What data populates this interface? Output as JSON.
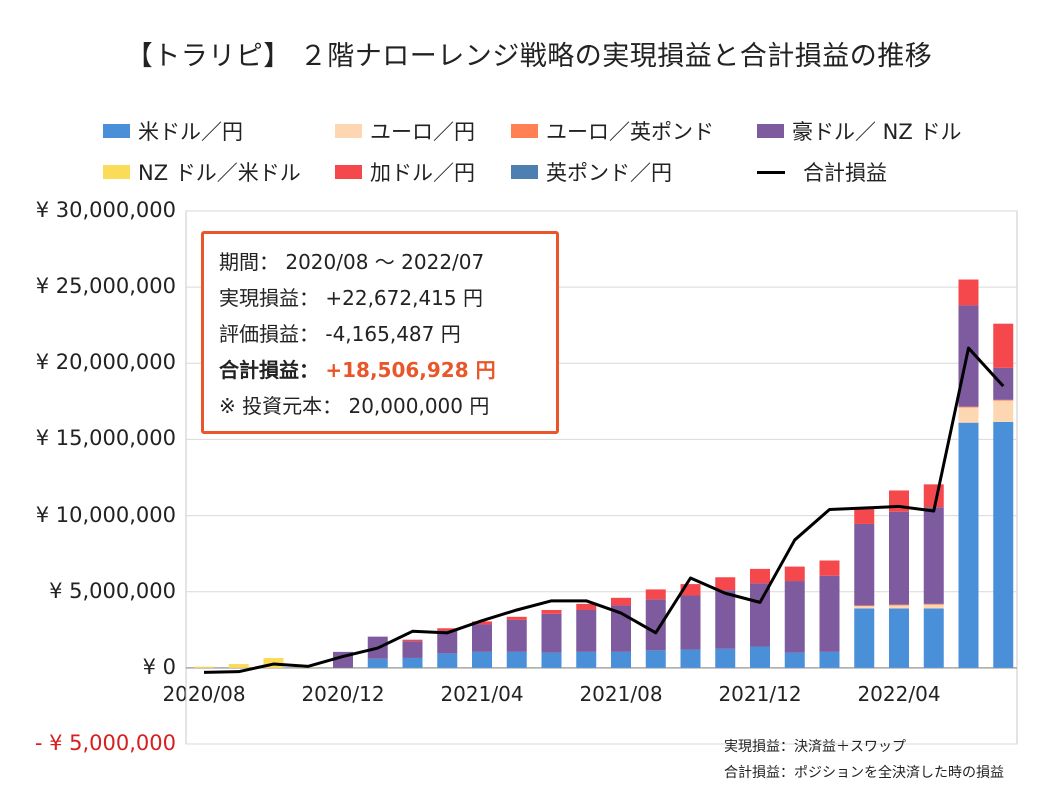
{
  "chart_data": {
    "type": "bar",
    "stacked": true,
    "title": "【トラリピ】 ２階ナローレンジ戦略の実現損益と合計損益の推移",
    "legend_position": "top",
    "colors": {
      "usdjpy": "#4a90d9",
      "eurjpy": "#fdd7b2",
      "eurgbp": "#ff8055",
      "audnzd": "#7e5a9e",
      "nzdusd": "#fbdc59",
      "cadjpy": "#f5484c",
      "gbpjpy": "#4e7fb1",
      "total_line": "#000000",
      "box_border": "#e8562a",
      "neg_tick": "#d62020"
    },
    "y_axis": {
      "ylim": [
        -5000000,
        30000000
      ],
      "ticks": [
        30000000,
        25000000,
        20000000,
        15000000,
        10000000,
        5000000,
        0,
        -5000000
      ],
      "tick_labels": [
        "¥ 30,000,000",
        "¥ 25,000,000",
        "¥ 20,000,000",
        "¥ 15,000,000",
        "¥ 10,000,000",
        "¥ 5,000,000",
        "¥ 0",
        "- ¥ 5,000,000"
      ]
    },
    "x_axis": {
      "tick_labels": [
        {
          "label": "2020/08",
          "index": 0
        },
        {
          "label": "2020/12",
          "index": 4
        },
        {
          "label": "2021/04",
          "index": 8
        },
        {
          "label": "2021/08",
          "index": 12
        },
        {
          "label": "2021/12",
          "index": 16
        },
        {
          "label": "2022/04",
          "index": 20
        }
      ]
    },
    "categories": [
      "2020/08",
      "2020/09",
      "2020/10",
      "2020/11",
      "2020/12",
      "2021/01",
      "2021/02",
      "2021/03",
      "2021/04",
      "2021/05",
      "2021/06",
      "2021/07",
      "2021/08",
      "2021/09",
      "2021/10",
      "2021/11",
      "2021/12",
      "2022/01",
      "2022/02",
      "2022/03",
      "2022/04",
      "2022/05",
      "2022/06",
      "2022/07"
    ],
    "series": [
      {
        "key": "usdjpy",
        "name": "米ドル／円",
        "values": [
          0,
          0,
          0,
          0,
          0,
          600000,
          650000,
          950000,
          1050000,
          1050000,
          1000000,
          1050000,
          1050000,
          1150000,
          1200000,
          1250000,
          1400000,
          1000000,
          1050000,
          3900000,
          3900000,
          3900000,
          16100000,
          16150000
        ]
      },
      {
        "key": "eurjpy",
        "name": "ユーロ／円",
        "values": [
          0,
          0,
          0,
          0,
          0,
          0,
          0,
          0,
          0,
          0,
          0,
          0,
          0,
          0,
          0,
          0,
          0,
          0,
          0,
          150000,
          200000,
          250000,
          1000000,
          1400000
        ]
      },
      {
        "key": "eurgbp",
        "name": "ユーロ／英ポンド",
        "values": [
          0,
          0,
          0,
          0,
          0,
          0,
          0,
          0,
          0,
          0,
          0,
          0,
          0,
          0,
          0,
          0,
          0,
          0,
          0,
          50000,
          50000,
          50000,
          50000,
          50000
        ]
      },
      {
        "key": "audnzd",
        "name": "豪ドル／ NZ ドル",
        "values": [
          0,
          0,
          0,
          0,
          1050000,
          1450000,
          1100000,
          1500000,
          1800000,
          2100000,
          2550000,
          2750000,
          3050000,
          3350000,
          3550000,
          3850000,
          4150000,
          4700000,
          5000000,
          5350000,
          6100000,
          6350000,
          6650000,
          2100000
        ]
      },
      {
        "key": "nzdusd",
        "name": "NZ ドル／米ドル",
        "values": [
          80000,
          250000,
          650000,
          20000,
          0,
          0,
          0,
          0,
          0,
          0,
          0,
          0,
          0,
          0,
          0,
          0,
          0,
          0,
          0,
          0,
          0,
          0,
          0,
          0
        ]
      },
      {
        "key": "cadjpy",
        "name": "加ドル／円",
        "values": [
          0,
          0,
          0,
          0,
          0,
          0,
          100000,
          150000,
          200000,
          200000,
          250000,
          400000,
          500000,
          650000,
          750000,
          850000,
          950000,
          950000,
          1000000,
          1100000,
          1400000,
          1500000,
          1700000,
          2900000
        ]
      },
      {
        "key": "gbpjpy",
        "name": "英ポンド／円",
        "values": [
          0,
          0,
          0,
          0,
          0,
          0,
          0,
          0,
          0,
          0,
          0,
          0,
          0,
          0,
          0,
          0,
          0,
          0,
          0,
          0,
          0,
          0,
          0,
          0
        ]
      }
    ],
    "total_line": {
      "name": "合計損益",
      "values": [
        -300000,
        -250000,
        250000,
        100000,
        750000,
        1300000,
        2400000,
        2300000,
        3100000,
        3800000,
        4400000,
        4400000,
        3600000,
        2300000,
        5900000,
        4900000,
        4300000,
        8400000,
        10400000,
        10500000,
        10600000,
        10300000,
        21000000,
        18500000
      ]
    }
  },
  "info_box": {
    "period_label": "期間：",
    "period_value": "2020/08 〜 2022/07",
    "realized_label": "実現損益：",
    "realized_value": "+22,672,415 円",
    "unrealized_label": "評価損益：",
    "unrealized_value": "-4,165,487 円",
    "total_label": "合計損益：",
    "total_value": "+18,506,928 円",
    "capital_label": "※ 投資元本：",
    "capital_value": "20,000,000 円"
  },
  "notes": {
    "realized": "実現損益：決済益＋スワップ",
    "total": "合計損益：ポジションを全決済した時の損益"
  }
}
